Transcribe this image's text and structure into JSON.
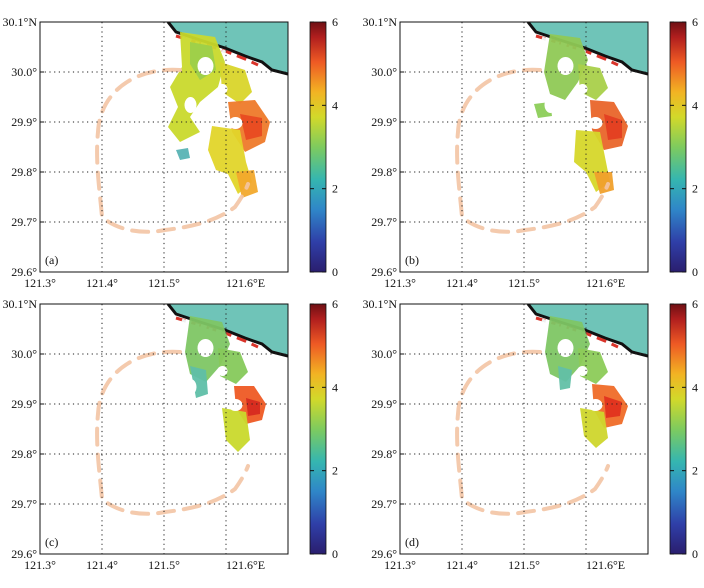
{
  "figure": {
    "lat_ticks": [
      "30.1°N",
      "30.0°",
      "29.9°",
      "29.8°",
      "29.7°",
      "29.6°"
    ],
    "lon_ticks": [
      "121.3°",
      "121.4°",
      "121.5°",
      "121.6°E"
    ],
    "colorbar_ticks": [
      "0",
      "2",
      "4",
      "6"
    ],
    "colorbar_range": [
      0,
      6
    ],
    "colorbar_colors": [
      "#2a1e6e",
      "#2f3fa8",
      "#2f86c8",
      "#35b6b0",
      "#7ecb5e",
      "#d2d92a",
      "#f2b323",
      "#ee5a24",
      "#b01e1e",
      "#6e0f14"
    ],
    "sea_color": "#6fc4b8",
    "ring_color": "#f3c4a4",
    "panels": [
      {
        "label": "(a)",
        "scenario": "a"
      },
      {
        "label": "(b)",
        "scenario": "b"
      },
      {
        "label": "(c)",
        "scenario": "c"
      },
      {
        "label": "(d)",
        "scenario": "d"
      }
    ]
  }
}
